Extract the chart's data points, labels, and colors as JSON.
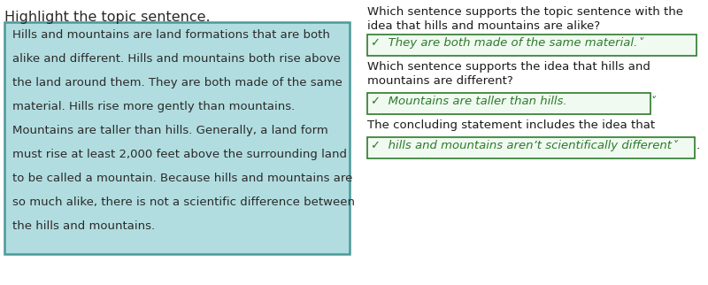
{
  "title_left": "Highlight the topic sentence.",
  "paragraph_lines": [
    "Hills and mountains are land formations that are both",
    "alike and different. Hills and mountains both rise above",
    "the land around them. They are both made of the same",
    "material. Hills rise more gently than mountains.",
    "Mountains are taller than hills. Generally, a land form",
    "must rise at least 2,000 feet above the surrounding land",
    "to be called a mountain. Because hills and mountains are",
    "so much alike, there is not a scientific difference between",
    "the hills and mountains."
  ],
  "box_bg_color": "#b2dde0",
  "box_border_color": "#4a9a9a",
  "text_color": "#2a2a2a",
  "title_fontsize": 11.5,
  "para_fontsize": 9.5,
  "right_q1_line1": "Which sentence supports the topic sentence with the",
  "right_q1_line2": "idea that hills and mountains are alike?",
  "right_a1": "✓  They are both made of the same material.˅",
  "right_q2_line1": "Which sentence supports the idea that hills and",
  "right_q2_line2": "mountains are different?",
  "right_a2": "✓  Mountains are taller than hills.                      ˅",
  "right_q3": "The concluding statement includes the idea that",
  "right_a3": "✓  hills and mountains aren’t scientifically different˅",
  "right_a3_period": ".",
  "answer_color": "#2d7a2d",
  "answer_border_color": "#2d7a2d",
  "right_text_color": "#1a1a1a",
  "bg_color": "#ffffff"
}
